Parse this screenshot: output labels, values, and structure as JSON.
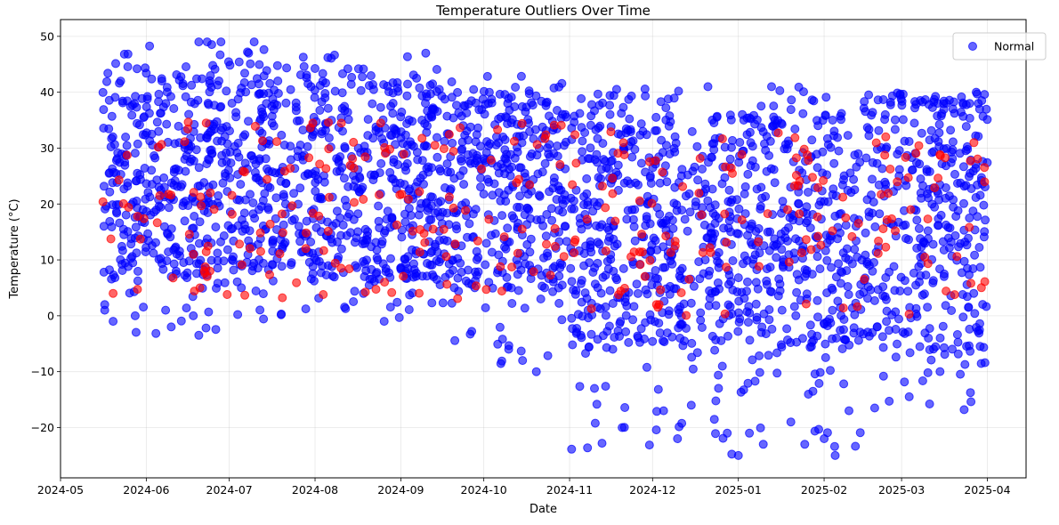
{
  "chart_data": {
    "type": "scatter",
    "title": "Temperature Outliers Over Time",
    "xlabel": "Date",
    "ylabel": "Temperature (°C)",
    "xlim": [
      "2024-05-01",
      "2025-04-15"
    ],
    "ylim": [
      -29,
      53
    ],
    "grid": true,
    "legend_position": "top-right",
    "x_ticks": [
      "2024-05",
      "2024-06",
      "2024-07",
      "2024-08",
      "2024-09",
      "2024-10",
      "2024-11",
      "2024-12",
      "2025-01",
      "2025-02",
      "2025-03",
      "2025-04"
    ],
    "y_ticks": [
      -20,
      -10,
      0,
      10,
      20,
      30,
      40,
      50
    ],
    "date_range": [
      "2024-05-16",
      "2025-04-01"
    ],
    "series": [
      {
        "name": "Normal",
        "color": "#0000ff",
        "alpha": 0.6,
        "marker": "circle",
        "bands": [
          {
            "from": "2024-05-16",
            "to": "2024-07-22",
            "core": [
              8,
              42
            ],
            "sparse": [
              -3.5,
              49
            ]
          },
          {
            "from": "2024-07-23",
            "to": "2024-09-15",
            "core": [
              7,
              41
            ],
            "sparse": [
              -1,
              47
            ]
          },
          {
            "from": "2024-09-15",
            "to": "2024-10-31",
            "core": [
              5,
              38
            ],
            "sparse": [
              -10,
              43
            ]
          },
          {
            "from": "2024-11-01",
            "to": "2025-02-15",
            "core": [
              -5,
              35
            ],
            "sparse": [
              -25,
              41
            ]
          },
          {
            "from": "2025-02-15",
            "to": "2025-04-01",
            "core": [
              -6,
              38
            ],
            "sparse": [
              -17,
              40
            ]
          }
        ],
        "points": [
          {
            "x": "2024-05-17",
            "y": 1
          },
          {
            "x": "2024-05-17",
            "y": 2
          },
          {
            "x": "2024-05-20",
            "y": -1
          },
          {
            "x": "2024-05-28",
            "y": 0
          },
          {
            "x": "2024-06-08",
            "y": 1
          },
          {
            "x": "2024-06-10",
            "y": -2
          },
          {
            "x": "2024-06-18",
            "y": 0
          },
          {
            "x": "2024-06-20",
            "y": -3.5
          },
          {
            "x": "2024-06-20",
            "y": 49
          },
          {
            "x": "2024-06-23",
            "y": 49
          },
          {
            "x": "2024-06-28",
            "y": 49
          },
          {
            "x": "2024-07-10",
            "y": 49
          },
          {
            "x": "2024-07-08",
            "y": 47
          },
          {
            "x": "2024-08-26",
            "y": -1
          },
          {
            "x": "2024-09-10",
            "y": 47
          },
          {
            "x": "2024-10-10",
            "y": -6
          },
          {
            "x": "2024-10-15",
            "y": -8
          },
          {
            "x": "2024-10-20",
            "y": -10
          },
          {
            "x": "2024-11-10",
            "y": -13
          },
          {
            "x": "2024-11-20",
            "y": -20
          },
          {
            "x": "2024-12-05",
            "y": -17
          },
          {
            "x": "2024-12-10",
            "y": -22
          },
          {
            "x": "2024-12-15",
            "y": -16
          },
          {
            "x": "2024-12-21",
            "y": 41
          },
          {
            "x": "2024-12-28",
            "y": -21
          },
          {
            "x": "2025-01-01",
            "y": -25
          },
          {
            "x": "2025-01-05",
            "y": -21
          },
          {
            "x": "2025-01-10",
            "y": -23
          },
          {
            "x": "2025-01-13",
            "y": 41
          },
          {
            "x": "2025-01-20",
            "y": -19
          },
          {
            "x": "2025-01-25",
            "y": -23
          },
          {
            "x": "2025-02-01",
            "y": -22
          },
          {
            "x": "2025-02-05",
            "y": -25
          },
          {
            "x": "2025-02-10",
            "y": -17
          },
          {
            "x": "2025-03-28",
            "y": 40
          }
        ]
      },
      {
        "name": "",
        "color": "#ff0000",
        "alpha": 0.6,
        "marker": "circle",
        "bands": [
          {
            "from": "2024-05-16",
            "to": "2024-10-31",
            "core": [
              3,
              35
            ],
            "sparse": [
              3,
              35
            ]
          },
          {
            "from": "2024-11-01",
            "to": "2025-04-01",
            "core": [
              0,
              33
            ],
            "sparse": [
              0,
              33
            ]
          }
        ],
        "points": [
          {
            "x": "2024-05-20",
            "y": 4
          },
          {
            "x": "2024-06-18",
            "y": 11
          },
          {
            "x": "2024-06-22",
            "y": 8
          },
          {
            "x": "2024-06-23",
            "y": 7
          },
          {
            "x": "2024-06-24",
            "y": 8
          }
        ]
      }
    ]
  }
}
